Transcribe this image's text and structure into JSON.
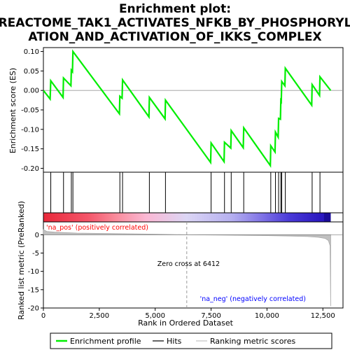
{
  "chart_data": {
    "type": "line",
    "title_lines": [
      "Enrichment plot:",
      "REACTOME_TAK1_ACTIVATES_NFKB_BY_PHOSPHORYL",
      "ATION_AND_ACTIVATION_OF_IKKS_COMPLEX"
    ],
    "xlabel": "Rank in Ordered Dataset",
    "ylabel_top": "Enrichment score (ES)",
    "ylabel_bottom": "Ranked list metric (PreRanked)",
    "xlim": [
      0,
      13400
    ],
    "x_ticks": [
      0,
      2500,
      5000,
      7500,
      10000,
      12500
    ],
    "x_tick_labels": [
      "0",
      "2,500",
      "5,000",
      "7,500",
      "10,000",
      "12,500"
    ],
    "es_ylim": [
      -0.21,
      0.11
    ],
    "es_ticks": [
      0.1,
      0.05,
      0.0,
      -0.05,
      -0.1,
      -0.15,
      -0.2
    ],
    "es_tick_labels": [
      "0.10",
      "0.05",
      "0.00",
      "-0.05",
      "-0.10",
      "-0.15",
      "-0.20"
    ],
    "metric_ylim": [
      -20,
      3.5
    ],
    "metric_ticks": [
      0,
      -5,
      -10,
      -15,
      -20
    ],
    "metric_tick_labels": [
      "0",
      "-5",
      "-10",
      "-15",
      "-20"
    ],
    "enrichment_profile": {
      "name": "Enrichment profile",
      "color": "#00ee00",
      "points": [
        [
          0,
          0.0
        ],
        [
          300,
          -0.022
        ],
        [
          330,
          0.025
        ],
        [
          880,
          -0.018
        ],
        [
          900,
          0.032
        ],
        [
          1230,
          0.012
        ],
        [
          1250,
          0.052
        ],
        [
          1300,
          0.048
        ],
        [
          1320,
          0.1
        ],
        [
          3400,
          -0.06
        ],
        [
          3420,
          -0.015
        ],
        [
          3520,
          -0.02
        ],
        [
          3540,
          0.027
        ],
        [
          4720,
          -0.068
        ],
        [
          4740,
          -0.018
        ],
        [
          5440,
          -0.073
        ],
        [
          5460,
          -0.025
        ],
        [
          7480,
          -0.185
        ],
        [
          7500,
          -0.135
        ],
        [
          8080,
          -0.183
        ],
        [
          8100,
          -0.133
        ],
        [
          8380,
          -0.148
        ],
        [
          8400,
          -0.103
        ],
        [
          8940,
          -0.147
        ],
        [
          8960,
          -0.096
        ],
        [
          10150,
          -0.193
        ],
        [
          10170,
          -0.142
        ],
        [
          10360,
          -0.158
        ],
        [
          10380,
          -0.107
        ],
        [
          10500,
          -0.12
        ],
        [
          10520,
          -0.072
        ],
        [
          10600,
          -0.074
        ],
        [
          10620,
          -0.026
        ],
        [
          10640,
          -0.028
        ],
        [
          10660,
          0.023
        ],
        [
          10800,
          0.012
        ],
        [
          10820,
          0.057
        ],
        [
          12000,
          -0.038
        ],
        [
          12020,
          0.015
        ],
        [
          12350,
          -0.013
        ],
        [
          12370,
          0.035
        ],
        [
          12850,
          0.0
        ]
      ]
    },
    "hits": {
      "name": "Hits",
      "color": "#000000",
      "x": [
        330,
        900,
        1250,
        1320,
        3420,
        3540,
        4740,
        5460,
        7500,
        8100,
        8400,
        8960,
        10170,
        10380,
        10520,
        10620,
        10660,
        10820,
        12020,
        12370
      ]
    },
    "ranking_metric": {
      "name": "Ranking metric scores",
      "color": "#c0c0c0",
      "points": [
        [
          0,
          1.4
        ],
        [
          150,
          0.9
        ],
        [
          500,
          0.7
        ],
        [
          1500,
          0.45
        ],
        [
          3000,
          0.3
        ],
        [
          5000,
          0.15
        ],
        [
          6412,
          0.0
        ],
        [
          8000,
          -0.12
        ],
        [
          10000,
          -0.25
        ],
        [
          11000,
          -0.35
        ],
        [
          11800,
          -0.5
        ],
        [
          12300,
          -0.7
        ],
        [
          12600,
          -1.0
        ],
        [
          12750,
          -1.6
        ],
        [
          12820,
          -3.0
        ],
        [
          12850,
          -19.5
        ]
      ]
    },
    "zero_cross_text": "Zero cross at 6412",
    "zero_cross_x": 6412,
    "na_pos_text": "'na_pos' (positively correlated)",
    "na_pos_color": "#ff0000",
    "na_neg_text": "'na_neg' (negatively correlated)",
    "na_neg_color": "#0000ff",
    "heatbar_stops": [
      [
        0,
        "#e8283a"
      ],
      [
        2000,
        "#f5566a"
      ],
      [
        3200,
        "#f98a9a"
      ],
      [
        4600,
        "#fbb8d4"
      ],
      [
        6400,
        "#dcd6f5"
      ],
      [
        8400,
        "#b6b0f0"
      ],
      [
        9800,
        "#7f72e6"
      ],
      [
        11000,
        "#4a3ad8"
      ],
      [
        12400,
        "#2a18c0"
      ],
      [
        12850,
        "#2a18c0"
      ]
    ],
    "legend": [
      {
        "label": "Enrichment profile",
        "color": "#00ee00"
      },
      {
        "label": "Hits",
        "color": "#000000"
      },
      {
        "label": "Ranking metric scores",
        "color": "#c0c0c0"
      }
    ]
  }
}
